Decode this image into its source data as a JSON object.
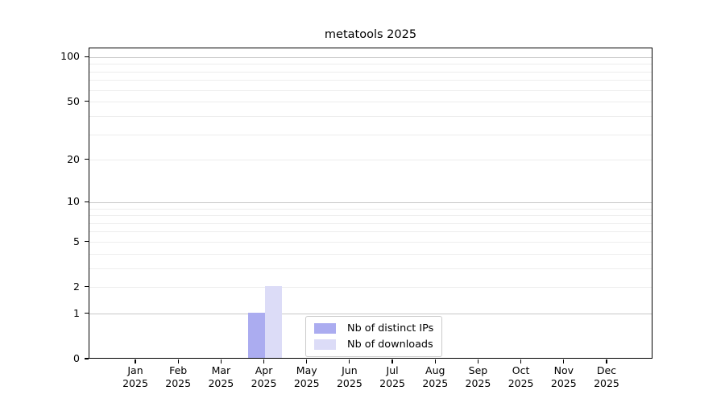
{
  "chart_data": {
    "type": "bar",
    "title": "metatools 2025",
    "x": {
      "months": [
        "Jan",
        "Feb",
        "Mar",
        "Apr",
        "May",
        "Jun",
        "Jul",
        "Aug",
        "Sep",
        "Oct",
        "Nov",
        "Dec"
      ],
      "year": "2025"
    },
    "categories": [
      "Jan 2025",
      "Feb 2025",
      "Mar 2025",
      "Apr 2025",
      "May 2025",
      "Jun 2025",
      "Jul 2025",
      "Aug 2025",
      "Sep 2025",
      "Oct 2025",
      "Nov 2025",
      "Dec 2025"
    ],
    "series": [
      {
        "name": "Nb of distinct IPs",
        "color": "#abacf0",
        "values": [
          0,
          0,
          0,
          1,
          0,
          0,
          0,
          0,
          0,
          0,
          0,
          0
        ]
      },
      {
        "name": "Nb of downloads",
        "color": "#dcdcf7",
        "values": [
          0,
          0,
          0,
          2,
          0,
          0,
          0,
          0,
          0,
          0,
          0,
          0
        ]
      }
    ],
    "yscale": "log1p",
    "ylim": [
      0,
      115
    ],
    "y_ticks": [
      0,
      1,
      2,
      5,
      10,
      20,
      50,
      100
    ],
    "y_major_gridlines": [
      1,
      10,
      100
    ],
    "y_minor_gridlines": [
      2,
      3,
      4,
      5,
      6,
      7,
      8,
      9,
      20,
      30,
      40,
      50,
      60,
      70,
      80,
      90
    ],
    "grid": true,
    "legend": {
      "position": "lower center",
      "entries": [
        "Nb of distinct IPs",
        "Nb of downloads"
      ]
    },
    "colors": {
      "bar_distinct_ips": "#abacf0",
      "bar_downloads": "#dcdcf7",
      "major_grid": "#c8c8c8",
      "minor_grid": "#ededed",
      "axis": "#000000",
      "legend_border": "#cbcbcb",
      "background": "#ffffff",
      "text": "#000000"
    }
  }
}
